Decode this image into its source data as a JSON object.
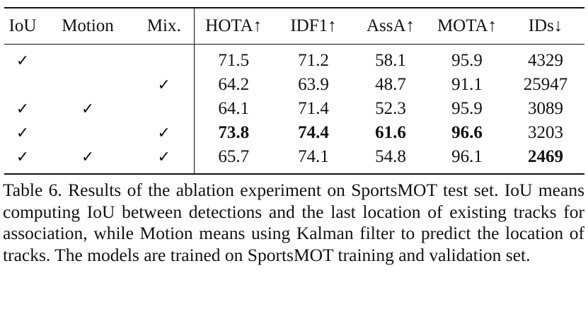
{
  "table": {
    "headers": [
      "IoU",
      "Motion",
      "Mix.",
      "HOTA↑",
      "IDF1↑",
      "AssA↑",
      "MOTA↑",
      "IDs↓"
    ],
    "check_symbol": "✓",
    "rows": [
      {
        "iou": "✓",
        "motion": "",
        "mix": "",
        "hota": "71.5",
        "idf1": "71.2",
        "assa": "58.1",
        "mota": "95.9",
        "ids": "4329"
      },
      {
        "iou": "",
        "motion": "",
        "mix": "✓",
        "hota": "64.2",
        "idf1": "63.9",
        "assa": "48.7",
        "mota": "91.1",
        "ids": "25947"
      },
      {
        "iou": "✓",
        "motion": "✓",
        "mix": "",
        "hota": "64.1",
        "idf1": "71.4",
        "assa": "52.3",
        "mota": "95.9",
        "ids": "3089"
      },
      {
        "iou": "✓",
        "motion": "",
        "mix": "✓",
        "hota": "73.8",
        "idf1": "74.4",
        "assa": "61.6",
        "mota": "96.6",
        "ids": "3203"
      },
      {
        "iou": "✓",
        "motion": "✓",
        "mix": "✓",
        "hota": "65.7",
        "idf1": "74.1",
        "assa": "54.8",
        "mota": "96.1",
        "ids": "2469"
      }
    ]
  },
  "caption": "Table 6.  Results of the ablation experiment on SportsMOT test set.  IoU means computing IoU between detections and the last location of existing tracks for association, while Motion means using Kalman filter to predict the location of tracks.  The models are trained on SportsMOT training and validation set."
}
